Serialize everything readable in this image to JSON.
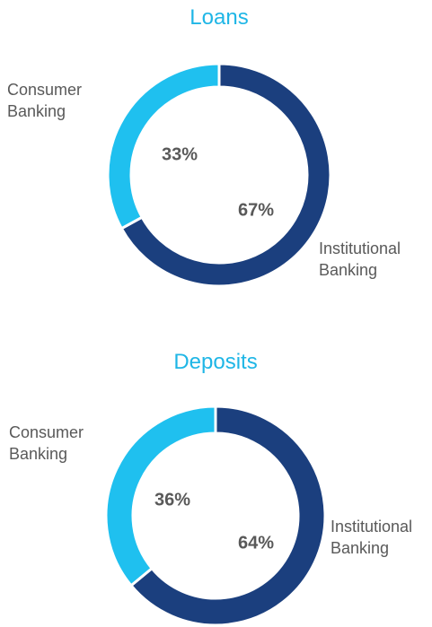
{
  "chart_data": [
    {
      "type": "pie",
      "title": "Loans",
      "categories": [
        "Institutional Banking",
        "Consumer Banking"
      ],
      "values": [
        67,
        33
      ],
      "value_labels": [
        "67%",
        "33%"
      ],
      "colors": [
        "#1b3f7e",
        "#1fc0ef"
      ]
    },
    {
      "type": "pie",
      "title": "Deposits",
      "categories": [
        "Institutional Banking",
        "Consumer Banking"
      ],
      "values": [
        64,
        36
      ],
      "value_labels": [
        "64%",
        "36%"
      ],
      "colors": [
        "#1b3f7e",
        "#1fc0ef"
      ]
    }
  ]
}
